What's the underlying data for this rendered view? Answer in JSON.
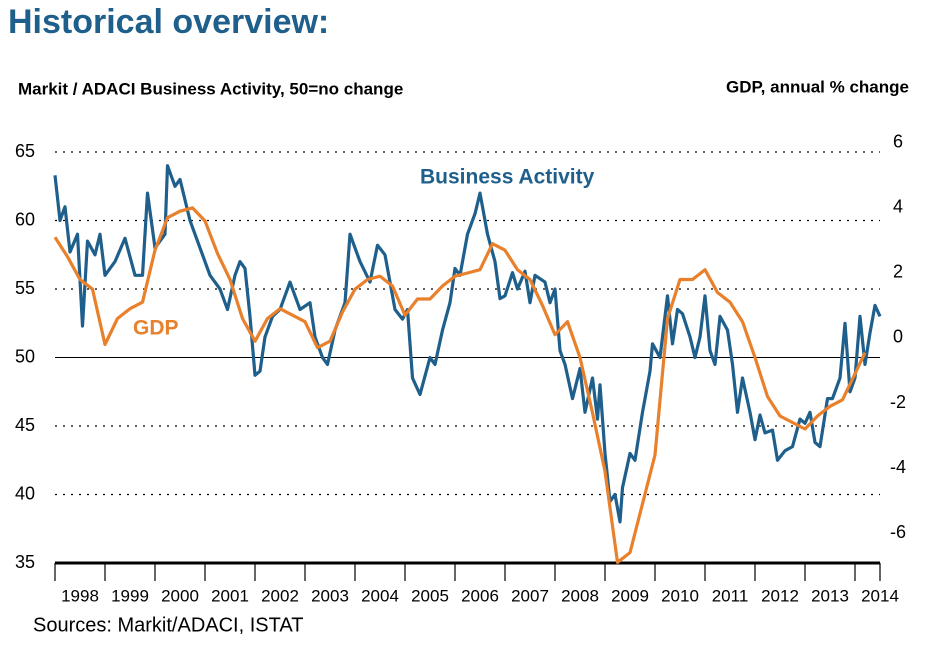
{
  "chart_data": {
    "type": "line",
    "title": "Historical overview:",
    "y_label": "Markit / ADACI  Business Activity, 50=no change",
    "y2_label": "GDP, annual % change",
    "source": "Sources: Markit/ADACI, ISTAT",
    "xlim": [
      1998,
      2014.5
    ],
    "xticks": [
      {
        "value": 1998,
        "label": "1998"
      },
      {
        "value": 1999,
        "label": "1999"
      },
      {
        "value": 2000,
        "label": "2000"
      },
      {
        "value": 2001,
        "label": "2001"
      },
      {
        "value": 2002,
        "label": "2002"
      },
      {
        "value": 2003,
        "label": "2003"
      },
      {
        "value": 2004,
        "label": "2004"
      },
      {
        "value": 2005,
        "label": "2005"
      },
      {
        "value": 2006,
        "label": "2006"
      },
      {
        "value": 2007,
        "label": "2007"
      },
      {
        "value": 2008,
        "label": "2008"
      },
      {
        "value": 2009,
        "label": "2009"
      },
      {
        "value": 2010,
        "label": "2010"
      },
      {
        "value": 2011,
        "label": "2011"
      },
      {
        "value": 2012,
        "label": "2012"
      },
      {
        "value": 2013,
        "label": "2013"
      },
      {
        "value": 2014,
        "label": "2014"
      }
    ],
    "ylim": [
      35,
      65
    ],
    "yticks": [
      35,
      40,
      45,
      50,
      55,
      60,
      65
    ],
    "y2lim": [
      -6.92,
      5.72
    ],
    "y2ticks": [
      -6,
      -4,
      -2,
      0,
      2,
      4,
      6
    ],
    "reference_line": 50,
    "grid": true,
    "series": [
      {
        "name": "Business Activity",
        "color": "#1f5f8b",
        "x": [
          1998.0,
          1998.1,
          1998.2,
          1998.3,
          1998.45,
          1998.55,
          1998.65,
          1998.8,
          1998.9,
          1999.0,
          1999.2,
          1999.4,
          1999.6,
          1999.75,
          1999.85,
          2000.0,
          2000.2,
          2000.25,
          2000.4,
          2000.5,
          2000.7,
          2000.9,
          2001.1,
          2001.3,
          2001.45,
          2001.6,
          2001.7,
          2001.8,
          2001.9,
          2002.0,
          2002.1,
          2002.2,
          2002.35,
          2002.5,
          2002.7,
          2002.9,
          2003.1,
          2003.2,
          2003.35,
          2003.45,
          2003.6,
          2003.8,
          2003.9,
          2004.1,
          2004.3,
          2004.45,
          2004.6,
          2004.8,
          2004.95,
          2005.05,
          2005.15,
          2005.3,
          2005.5,
          2005.6,
          2005.75,
          2005.9,
          2006.0,
          2006.1,
          2006.25,
          2006.4,
          2006.5,
          2006.65,
          2006.8,
          2006.9,
          2007.0,
          2007.15,
          2007.25,
          2007.4,
          2007.5,
          2007.6,
          2007.8,
          2007.9,
          2008.0,
          2008.1,
          2008.2,
          2008.35,
          2008.5,
          2008.6,
          2008.75,
          2008.85,
          2008.9,
          2009.0,
          2009.1,
          2009.2,
          2009.3,
          2009.35,
          2009.5,
          2009.6,
          2009.75,
          2009.9,
          2009.95,
          2010.1,
          2010.25,
          2010.35,
          2010.45,
          2010.55,
          2010.7,
          2010.8,
          2010.9,
          2011.0,
          2011.1,
          2011.2,
          2011.3,
          2011.45,
          2011.55,
          2011.65,
          2011.75,
          2011.9,
          2012.0,
          2012.1,
          2012.2,
          2012.35,
          2012.45,
          2012.6,
          2012.75,
          2012.9,
          2013.0,
          2013.1,
          2013.2,
          2013.3,
          2013.45,
          2013.55,
          2013.7,
          2013.8,
          2013.9,
          2014.0,
          2014.1,
          2014.2,
          2014.3,
          2014.4,
          2014.5
        ],
        "values": [
          63.3,
          60,
          61,
          57.7,
          59,
          52.3,
          58.5,
          57.5,
          59,
          56,
          57,
          58.7,
          56,
          56,
          62,
          58,
          59,
          64,
          62.5,
          63,
          60,
          58,
          56,
          55,
          53.5,
          56,
          57,
          56.5,
          53,
          48.7,
          49,
          51.5,
          53,
          53.5,
          55.5,
          53.5,
          54,
          51.5,
          50,
          49.5,
          52,
          54,
          59,
          57,
          55.5,
          58.2,
          57.5,
          53.5,
          52.8,
          53.5,
          48.5,
          47.3,
          50,
          49.5,
          52,
          54,
          56.5,
          56,
          59,
          60.5,
          62,
          59,
          57,
          54.3,
          54.5,
          56.2,
          55,
          56.3,
          54,
          56,
          55.5,
          54,
          55,
          50.5,
          49.5,
          47,
          49.2,
          46,
          48.5,
          45.5,
          48,
          43,
          39.5,
          40,
          38,
          40.5,
          43,
          42.5,
          46,
          49,
          51,
          50,
          54.5,
          51,
          53.5,
          53.2,
          51.5,
          50,
          51.5,
          54.5,
          50.5,
          49.5,
          53,
          52,
          49.5,
          46,
          48.5,
          46,
          44,
          45.8,
          44.5,
          44.7,
          42.5,
          43.2,
          43.5,
          45.5,
          45.2,
          46,
          43.8,
          43.5,
          47,
          47,
          48.5,
          52.5,
          47.5,
          48.5,
          53,
          49.5,
          51.8,
          53.8,
          53
        ]
      },
      {
        "name": "GDP",
        "color": "#e8802c",
        "axis": "y2",
        "x": [
          1998.0,
          1998.25,
          1998.5,
          1998.75,
          1999.0,
          1999.25,
          1999.5,
          1999.75,
          2000.0,
          2000.25,
          2000.5,
          2000.75,
          2001.0,
          2001.25,
          2001.5,
          2001.75,
          2002.0,
          2002.25,
          2002.5,
          2002.75,
          2003.0,
          2003.25,
          2003.5,
          2003.75,
          2004.0,
          2004.25,
          2004.5,
          2004.75,
          2005.0,
          2005.25,
          2005.5,
          2005.75,
          2006.0,
          2006.25,
          2006.5,
          2006.75,
          2007.0,
          2007.25,
          2007.5,
          2007.75,
          2008.0,
          2008.25,
          2008.5,
          2008.75,
          2009.0,
          2009.25,
          2009.5,
          2009.75,
          2010.0,
          2010.25,
          2010.5,
          2010.75,
          2011.0,
          2011.25,
          2011.5,
          2011.75,
          2012.0,
          2012.25,
          2012.5,
          2012.75,
          2013.0,
          2013.25,
          2013.5,
          2013.75,
          2014.0,
          2014.2
        ],
        "values": [
          3.1,
          2.5,
          1.8,
          1.5,
          -0.2,
          0.6,
          0.9,
          1.1,
          2.7,
          3.7,
          3.9,
          4.0,
          3.6,
          2.6,
          1.8,
          0.6,
          -0.1,
          0.6,
          0.9,
          0.7,
          0.5,
          -0.3,
          -0.1,
          0.8,
          1.5,
          1.8,
          1.9,
          1.6,
          0.7,
          1.2,
          1.2,
          1.6,
          1.9,
          2.0,
          2.1,
          2.9,
          2.7,
          2.1,
          1.8,
          1.0,
          0.1,
          0.5,
          -0.6,
          -2.3,
          -4.1,
          -6.9,
          -6.6,
          -5.1,
          -3.6,
          0.6,
          1.8,
          1.8,
          2.1,
          1.4,
          1.1,
          0.5,
          -0.6,
          -1.8,
          -2.4,
          -2.6,
          -2.8,
          -2.4,
          -2.1,
          -1.9,
          -1.1,
          -0.45
        ]
      }
    ]
  }
}
